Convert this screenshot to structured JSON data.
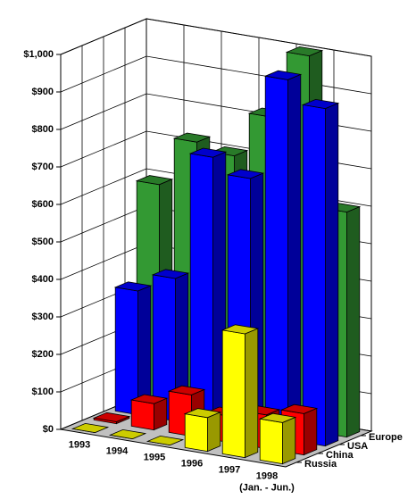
{
  "chart_data": {
    "type": "bar3d",
    "categories": [
      "1993",
      "1994",
      "1995",
      "1996",
      "1997",
      "1998\n(Jan. - Jun.)"
    ],
    "series": [
      {
        "name": "Russia",
        "color": "#ffff00",
        "values": [
          0,
          0,
          0,
          90,
          330,
          110
        ]
      },
      {
        "name": "China",
        "color": "#ff0000",
        "values": [
          5,
          70,
          110,
          70,
          90,
          110
        ]
      },
      {
        "name": "USA",
        "color": "#0000ff",
        "values": [
          330,
          380,
          720,
          680,
          960,
          900
        ]
      },
      {
        "name": "Europe",
        "color": "#339933",
        "values": [
          590,
          720,
          700,
          820,
          1000,
          600
        ]
      }
    ],
    "ylim": [
      0,
      1000
    ],
    "yticks": [
      {
        "value": 0,
        "label": "$0"
      },
      {
        "value": 100,
        "label": "$100"
      },
      {
        "value": 200,
        "label": "$200"
      },
      {
        "value": 300,
        "label": "$300"
      },
      {
        "value": 400,
        "label": "$400"
      },
      {
        "value": 500,
        "label": "$500"
      },
      {
        "value": 600,
        "label": "$600"
      },
      {
        "value": 700,
        "label": "$700"
      },
      {
        "value": 800,
        "label": "$800"
      },
      {
        "value": 900,
        "label": "$900"
      },
      {
        "value": 1000,
        "label": "$1,000"
      }
    ],
    "grid": true
  }
}
